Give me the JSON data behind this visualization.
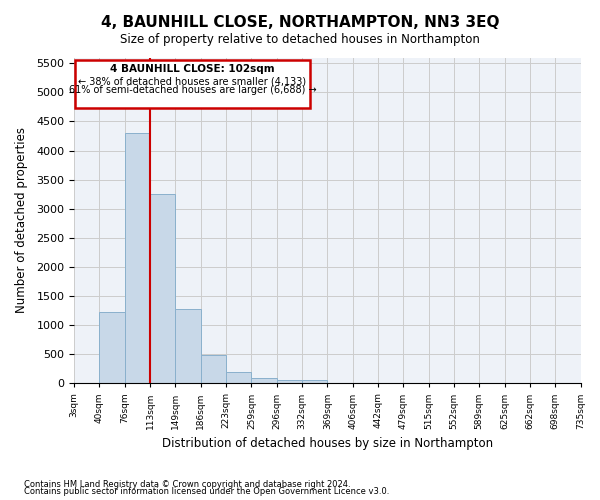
{
  "title": "4, BAUNHILL CLOSE, NORTHAMPTON, NN3 3EQ",
  "subtitle": "Size of property relative to detached houses in Northampton",
  "xlabel": "Distribution of detached houses by size in Northampton",
  "ylabel": "Number of detached properties",
  "footnote1": "Contains HM Land Registry data © Crown copyright and database right 2024.",
  "footnote2": "Contains public sector information licensed under the Open Government Licence v3.0.",
  "annotation_title": "4 BAUNHILL CLOSE: 102sqm",
  "annotation_line1": "← 38% of detached houses are smaller (4,133)",
  "annotation_line2": "61% of semi-detached houses are larger (6,688) →",
  "bar_color": "#c8d8e8",
  "bar_edge_color": "#8ab0cc",
  "vline_color": "#cc0000",
  "vline_x": 2.5,
  "bin_labels": [
    "3sqm",
    "40sqm",
    "76sqm",
    "113sqm",
    "149sqm",
    "186sqm",
    "223sqm",
    "259sqm",
    "296sqm",
    "332sqm",
    "369sqm",
    "406sqm",
    "442sqm",
    "479sqm",
    "515sqm",
    "552sqm",
    "589sqm",
    "625sqm",
    "662sqm",
    "698sqm",
    "735sqm"
  ],
  "bar_values": [
    0,
    1230,
    4300,
    3250,
    1270,
    480,
    200,
    90,
    55,
    55,
    0,
    0,
    0,
    0,
    0,
    0,
    0,
    0,
    0,
    0
  ],
  "ylim": [
    0,
    5600
  ],
  "yticks": [
    0,
    500,
    1000,
    1500,
    2000,
    2500,
    3000,
    3500,
    4000,
    4500,
    5000,
    5500
  ],
  "grid_color": "#cccccc",
  "background_color": "#eef2f8"
}
